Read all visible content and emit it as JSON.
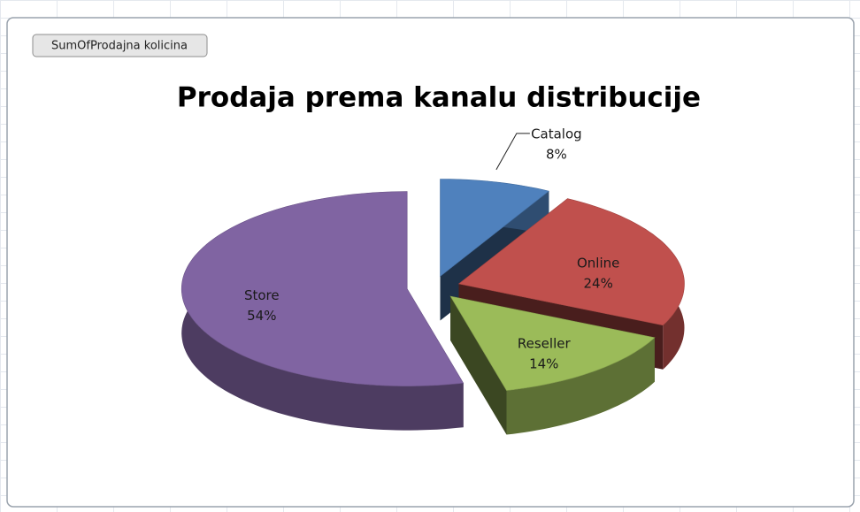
{
  "chart_data": {
    "type": "pie3d",
    "field_button": "SumOfProdajna kolicina",
    "title": "Prodaja prema kanalu distribucije",
    "categories": [
      "Catalog",
      "Online",
      "Reseller",
      "Store"
    ],
    "values": [
      8,
      24,
      14,
      54
    ],
    "value_labels": [
      "8%",
      "24%",
      "14%",
      "54%"
    ],
    "colors": [
      "#4f81bd",
      "#c0504d",
      "#9bbb59",
      "#8064a2"
    ],
    "exploded": true
  }
}
